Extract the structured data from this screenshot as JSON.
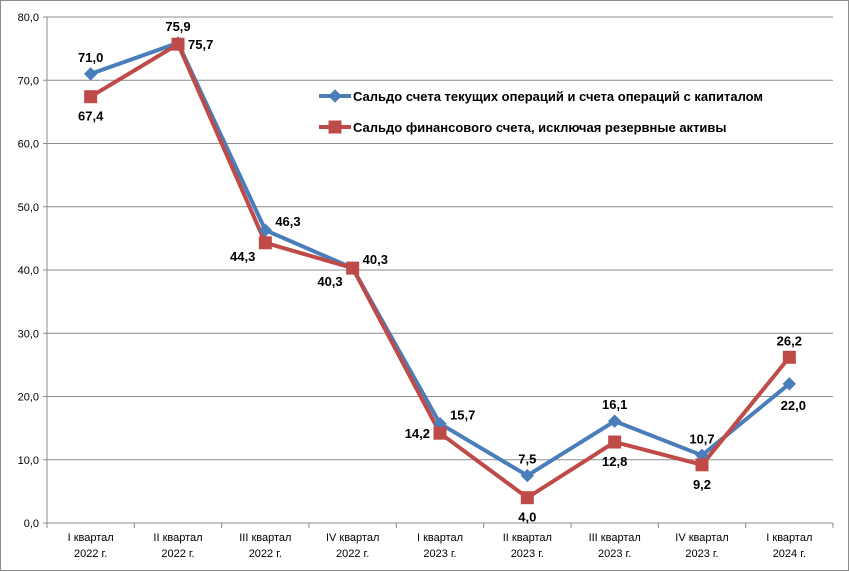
{
  "chart_data": {
    "type": "line",
    "title": "",
    "xlabel": "",
    "ylabel": "",
    "ylim": [
      0,
      80
    ],
    "ytick_step": 10,
    "ytick_labels": [
      "0,0",
      "10,0",
      "20,0",
      "30,0",
      "40,0",
      "50,0",
      "60,0",
      "70,0",
      "80,0"
    ],
    "grid": true,
    "legend_position": "top-right",
    "categories": [
      [
        "I квартал",
        "2022 г."
      ],
      [
        "II квартал",
        "2022 г."
      ],
      [
        "III квартал",
        "2022 г."
      ],
      [
        "IV квартал",
        "2022 г."
      ],
      [
        "I квартал",
        "2023 г."
      ],
      [
        "II квартал",
        "2023 г."
      ],
      [
        "III квартал",
        "2023 г."
      ],
      [
        "IV квартал",
        "2023 г."
      ],
      [
        "I квартал",
        "2024 г."
      ]
    ],
    "series": [
      {
        "name": "Сальдо счета текущих операций и счета операций с капиталом",
        "color": "#4a7ebb",
        "marker": "diamond",
        "values": [
          71.0,
          75.9,
          46.3,
          40.3,
          15.7,
          7.5,
          16.1,
          10.7,
          22.0
        ],
        "labels": [
          "71,0",
          "75,9",
          "46,3",
          "40,3",
          "15,7",
          "7,5",
          "16,1",
          "10,7",
          "22,0"
        ]
      },
      {
        "name": "Сальдо финансового счета, исключая резервные активы",
        "color": "#be4b48",
        "marker": "square",
        "values": [
          67.4,
          75.7,
          44.3,
          40.3,
          14.2,
          4.0,
          12.8,
          9.2,
          26.2
        ],
        "labels": [
          "67,4",
          "75,7",
          "44,3",
          "40,3",
          "14,2",
          "4,0",
          "12,8",
          "9,2",
          "26,2"
        ]
      }
    ]
  }
}
